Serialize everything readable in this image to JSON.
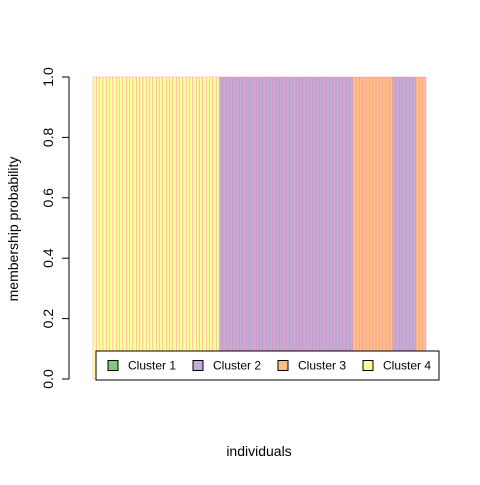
{
  "chart_data": {
    "type": "bar",
    "stacked": true,
    "xlabel": "individuals",
    "ylabel": "membership probability",
    "ylim": [
      0,
      1
    ],
    "yticks": [
      {
        "value": 0.0,
        "label": "0.0"
      },
      {
        "value": 0.2,
        "label": "0.2"
      },
      {
        "value": 0.4,
        "label": "0.4"
      },
      {
        "value": 0.6,
        "label": "0.6"
      },
      {
        "value": 0.8,
        "label": "0.8"
      },
      {
        "value": 1.0,
        "label": "1.0"
      }
    ],
    "n_individuals": 100,
    "legend_position": "bottom, inside plot",
    "series": [
      {
        "name": "Cluster 1",
        "color": "#7fc97f"
      },
      {
        "name": "Cluster 2",
        "color": "#beaed4"
      },
      {
        "name": "Cluster 3",
        "color": "#fdc086"
      },
      {
        "name": "Cluster 4",
        "color": "#ffff99"
      }
    ],
    "assignment_runs": [
      {
        "cluster": 4,
        "count": 38
      },
      {
        "cluster": 2,
        "count": 40
      },
      {
        "cluster": 3,
        "count": 12
      },
      {
        "cluster": 2,
        "count": 7
      },
      {
        "cluster": 3,
        "count": 3
      }
    ],
    "bar_border_color": "#ff69b4"
  }
}
